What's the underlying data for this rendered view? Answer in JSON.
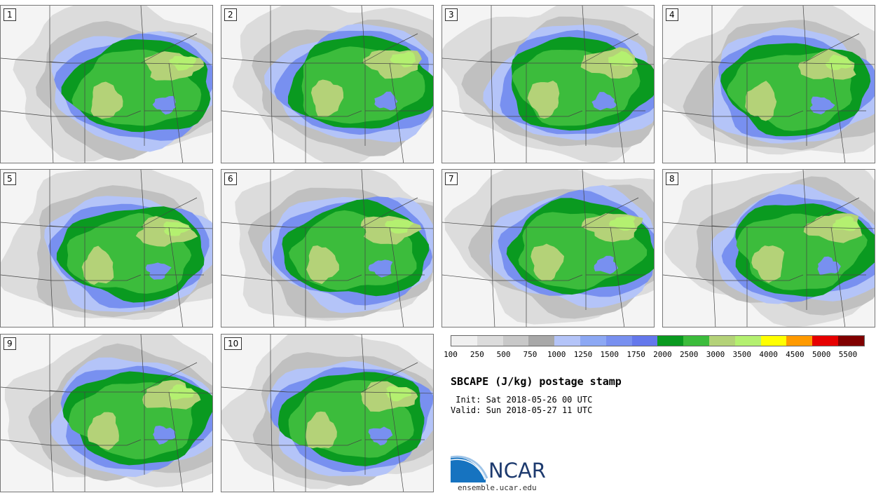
{
  "title": "SBCAPE (J/kg) postage stamp",
  "init_line": " Init: Sat 2018-05-26 00 UTC",
  "valid_line": "Valid: Sun 2018-05-27 11 UTC",
  "logo_text": "NCAR",
  "site": "ensemble.ucar.edu",
  "panels": [
    {
      "label": "1"
    },
    {
      "label": "2"
    },
    {
      "label": "3"
    },
    {
      "label": "4"
    },
    {
      "label": "5"
    },
    {
      "label": "6"
    },
    {
      "label": "7"
    },
    {
      "label": "8"
    },
    {
      "label": "9"
    },
    {
      "label": "10"
    }
  ],
  "colorbar": {
    "ticks": [
      "100",
      "250",
      "500",
      "750",
      "1000",
      "1250",
      "1500",
      "1750",
      "2000",
      "2500",
      "3000",
      "3500",
      "4000",
      "4500",
      "5000",
      "5500"
    ],
    "colors": [
      "#f0f0f0",
      "#dcdcdc",
      "#c8c8c8",
      "#a8a8a8",
      "#b4c4f8",
      "#8ca8f4",
      "#7890f0",
      "#6478ec",
      "#0a9a20",
      "#3cbc3c",
      "#b4d278",
      "#b4f070",
      "#ffff00",
      "#ff9a00",
      "#e60000",
      "#800000"
    ]
  },
  "map_colors": {
    "light_gray": "#dcdcdc",
    "mid_gray": "#c0c0c0",
    "blue_light": "#b4c4f8",
    "blue": "#7890f0",
    "green_dark": "#0a9a20",
    "green": "#3cbc3c",
    "green_yellow": "#b4d278",
    "lime": "#b4f070"
  }
}
